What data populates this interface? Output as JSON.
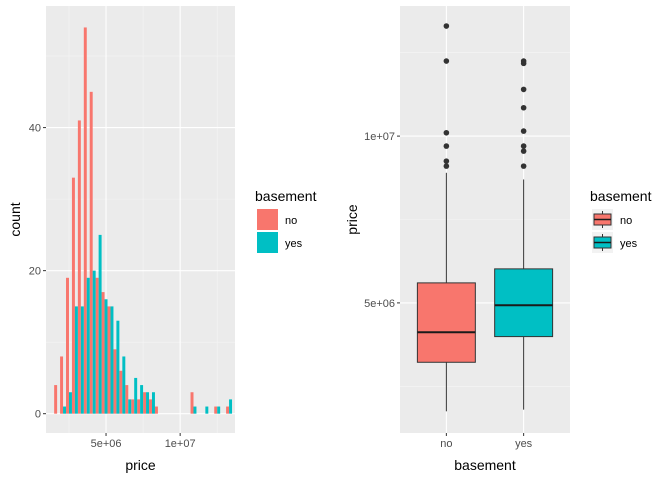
{
  "chart_data": [
    {
      "type": "bar",
      "subtype": "histogram-dodged",
      "xlabel": "price",
      "ylabel": "count",
      "xticks": [
        {
          "value": 5000000,
          "label": "5e+06"
        },
        {
          "value": 10000000,
          "label": "1e+07"
        }
      ],
      "yticks": [
        {
          "value": 0,
          "label": "0"
        },
        {
          "value": 20,
          "label": "20"
        },
        {
          "value": 40,
          "label": "40"
        }
      ],
      "xlim": [
        950000,
        13700000
      ],
      "ylim": [
        -2.7,
        57
      ],
      "grid": true,
      "legend": {
        "title": "basement",
        "position": "right",
        "entries": [
          {
            "label": "no",
            "color": "#F8766D"
          },
          {
            "label": "yes",
            "color": "#00BFC4"
          }
        ]
      },
      "bin_start": 1500000,
      "bin_width": 400000,
      "series": [
        {
          "name": "no",
          "color": "#F8766D",
          "values": [
            4,
            8,
            19,
            33,
            41,
            54,
            45,
            19,
            17,
            15,
            9,
            6,
            4,
            2,
            2,
            3,
            2,
            1,
            0,
            0,
            0,
            0,
            0,
            3,
            0,
            0,
            0,
            1,
            0,
            1
          ]
        },
        {
          "name": "yes",
          "color": "#00BFC4",
          "values": [
            0,
            1,
            3,
            15,
            15,
            19,
            20,
            25,
            16,
            15,
            13,
            8,
            2,
            5,
            4,
            3,
            3,
            0,
            0,
            0,
            0,
            0,
            0,
            1,
            0,
            1,
            0,
            1,
            0,
            2
          ]
        }
      ]
    },
    {
      "type": "box",
      "xlabel": "basement",
      "ylabel": "price",
      "categories": [
        "no",
        "yes"
      ],
      "yticks": [
        {
          "value": 5000000,
          "label": "5e+06"
        },
        {
          "value": 10000000,
          "label": "1e+07"
        }
      ],
      "ylim": [
        1100000,
        13900000
      ],
      "grid": true,
      "legend": {
        "title": "basement",
        "position": "right",
        "entries": [
          {
            "label": "no",
            "color": "#F8766D"
          },
          {
            "label": "yes",
            "color": "#00BFC4"
          }
        ]
      },
      "boxes": [
        {
          "name": "no",
          "color": "#F8766D",
          "min": 1750000,
          "q1": 3220000,
          "median": 4120000,
          "q3": 5600000,
          "max": 8900000,
          "outliers": [
            9100000,
            9250000,
            9700000,
            10100000,
            12250000,
            13300000
          ]
        },
        {
          "name": "yes",
          "color": "#00BFC4",
          "min": 1800000,
          "q1": 3990000,
          "median": 4930000,
          "q3": 6020000,
          "max": 8700000,
          "outliers": [
            9100000,
            9550000,
            9700000,
            10150000,
            10850000,
            11400000,
            12180000,
            12250000
          ]
        }
      ]
    }
  ]
}
